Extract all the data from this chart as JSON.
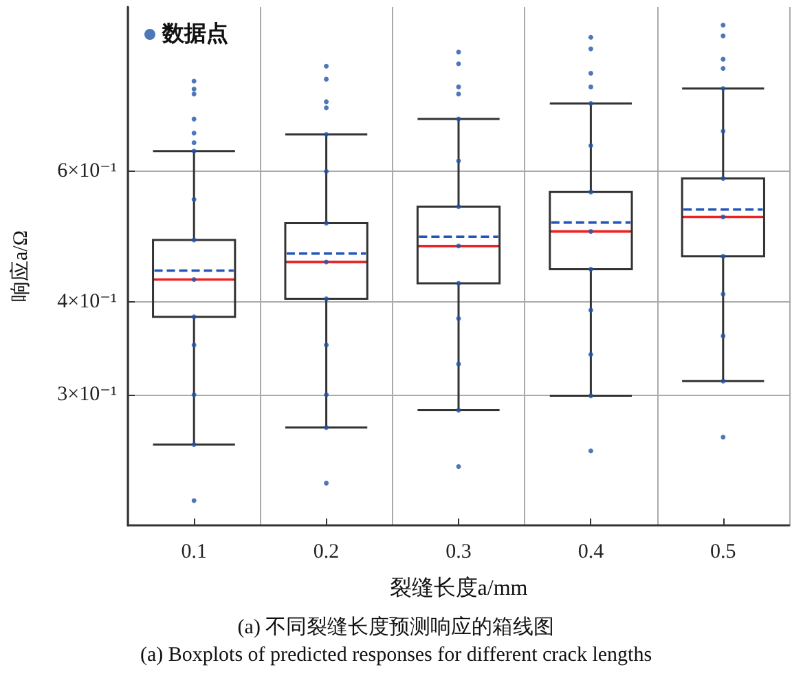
{
  "chart_data": {
    "type": "box",
    "xlabel": "裂缝长度a/mm",
    "ylabel": "响应a/Ω",
    "categories": [
      "0.1",
      "0.2",
      "0.3",
      "0.4",
      "0.5"
    ],
    "log": "y",
    "ylim": [
      0.2,
      1.0
    ],
    "yticks": [
      {
        "value": 0.3,
        "label": "3×10⁻¹"
      },
      {
        "value": 0.4,
        "label": "4×10⁻¹"
      },
      {
        "value": 0.6,
        "label": "6×10⁻¹"
      }
    ],
    "grid": true,
    "legend": "top left",
    "series": [
      {
        "color": "#333333",
        "boxes": [
          {
            "low": 0.257,
            "q1": 0.382,
            "median": 0.429,
            "q3": 0.485,
            "high": 0.639,
            "mean": 0.441
          },
          {
            "low": 0.271,
            "q1": 0.404,
            "median": 0.453,
            "q3": 0.511,
            "high": 0.673,
            "mean": 0.465
          },
          {
            "low": 0.286,
            "q1": 0.424,
            "median": 0.476,
            "q3": 0.538,
            "high": 0.706,
            "mean": 0.49
          },
          {
            "low": 0.299,
            "q1": 0.443,
            "median": 0.498,
            "q3": 0.563,
            "high": 0.741,
            "mean": 0.512
          },
          {
            "low": 0.313,
            "q1": 0.461,
            "median": 0.521,
            "q3": 0.587,
            "high": 0.776,
            "mean": 0.533
          }
        ]
      },
      {
        "type": "scatter",
        "name": "数据点",
        "color": "#2255aa",
        "marker": "circle",
        "x": [
          "0.1",
          "0.1",
          "0.1",
          "0.1",
          "0.1",
          "0.1",
          "0.1",
          "0.1",
          "0.1",
          "0.1",
          "0.1",
          "0.1",
          "0.1",
          "0.1",
          "0.1",
          "0.2",
          "0.2",
          "0.2",
          "0.2",
          "0.2",
          "0.2",
          "0.2",
          "0.2",
          "0.2",
          "0.2",
          "0.2",
          "0.2",
          "0.2",
          "0.3",
          "0.3",
          "0.3",
          "0.3",
          "0.3",
          "0.3",
          "0.3",
          "0.3",
          "0.3",
          "0.3",
          "0.3",
          "0.3",
          "0.3",
          "0.4",
          "0.4",
          "0.4",
          "0.4",
          "0.4",
          "0.4",
          "0.4",
          "0.4",
          "0.4",
          "0.4",
          "0.4",
          "0.4",
          "0.4",
          "0.5",
          "0.5",
          "0.5",
          "0.5",
          "0.5",
          "0.5",
          "0.5",
          "0.5",
          "0.5",
          "0.5",
          "0.5",
          "0.5",
          "0.5"
        ],
        "values": [
          0.216,
          0.257,
          0.3,
          0.35,
          0.382,
          0.429,
          0.485,
          0.55,
          0.639,
          0.656,
          0.676,
          0.706,
          0.763,
          0.775,
          0.794,
          0.228,
          0.271,
          0.3,
          0.35,
          0.404,
          0.453,
          0.511,
          0.6,
          0.673,
          0.731,
          0.745,
          0.799,
          0.832,
          0.24,
          0.286,
          0.33,
          0.38,
          0.424,
          0.476,
          0.538,
          0.62,
          0.706,
          0.763,
          0.78,
          0.838,
          0.869,
          0.252,
          0.299,
          0.34,
          0.39,
          0.443,
          0.498,
          0.563,
          0.65,
          0.741,
          0.78,
          0.814,
          0.878,
          0.91,
          0.263,
          0.313,
          0.36,
          0.41,
          0.461,
          0.521,
          0.587,
          0.68,
          0.776,
          0.826,
          0.85,
          0.914,
          0.945
        ]
      }
    ],
    "annotations": [
      "(a) 不同裂缝长度预测响应的箱线图",
      "(a) Boxplots of predicted responses for different crack lengths"
    ]
  }
}
